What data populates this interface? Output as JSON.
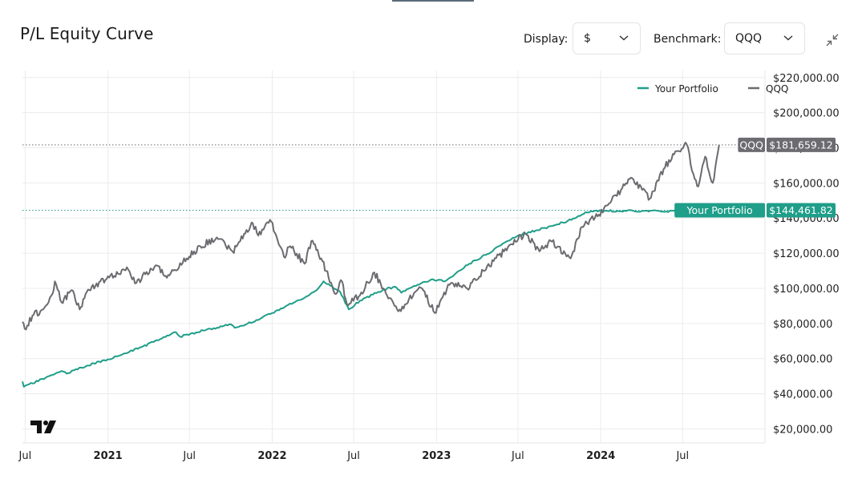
{
  "header": {
    "title": "P/L Equity Curve",
    "display_label": "Display:",
    "display_value": "$",
    "benchmark_label": "Benchmark:",
    "benchmark_value": "QQQ"
  },
  "colors": {
    "portfolio": "#1f9e89",
    "benchmark": "#6b6b70",
    "grid": "#ececec",
    "text": "#1f1f1f"
  },
  "icons": [
    "chevron-down-icon",
    "collapse-icon",
    "tradingview-logo"
  ],
  "chart_data": {
    "type": "line",
    "title": "P/L Equity Curve",
    "xlabel": "",
    "ylabel": "",
    "x_range": [
      "2020-06-25",
      "2024-12-31"
    ],
    "ylim": [
      12000,
      224000
    ],
    "y_ticks": [
      20000,
      40000,
      60000,
      80000,
      100000,
      120000,
      140000,
      160000,
      180000,
      200000,
      220000
    ],
    "y_tick_labels": [
      "$20,000.00",
      "$40,000.00",
      "$60,000.00",
      "$80,000.00",
      "$100,000.00",
      "$120,000.00",
      "$140,000.00",
      "$160,000.00",
      "$180,000.00",
      "$200,000.00",
      "$220,000.00"
    ],
    "x_ticks": [
      {
        "label": "Jul",
        "date": "2020-07-01",
        "major": false
      },
      {
        "label": "2021",
        "date": "2021-01-01",
        "major": true
      },
      {
        "label": "Jul",
        "date": "2021-07-01",
        "major": false
      },
      {
        "label": "2022",
        "date": "2022-01-01",
        "major": true
      },
      {
        "label": "Jul",
        "date": "2022-07-01",
        "major": false
      },
      {
        "label": "2023",
        "date": "2023-01-01",
        "major": true
      },
      {
        "label": "Jul",
        "date": "2023-07-01",
        "major": false
      },
      {
        "label": "2024",
        "date": "2024-01-01",
        "major": true
      },
      {
        "label": "Jul",
        "date": "2024-07-01",
        "major": false
      }
    ],
    "grid": true,
    "legend_position": "top-right",
    "series": [
      {
        "name": "Your Portfolio",
        "color": "#1f9e89",
        "last_value_label": "$144,461.82",
        "last_value": 144461.82,
        "points": [
          [
            "2020-06-25",
            47000
          ],
          [
            "2020-06-28",
            44000
          ],
          [
            "2020-08-15",
            49000
          ],
          [
            "2020-09-20",
            53000
          ],
          [
            "2020-10-01",
            51500
          ],
          [
            "2020-11-15",
            56000
          ],
          [
            "2020-12-31",
            59500
          ],
          [
            "2021-02-10",
            63000
          ],
          [
            "2021-03-20",
            67000
          ],
          [
            "2021-05-01",
            71500
          ],
          [
            "2021-06-01",
            75000
          ],
          [
            "2021-06-10",
            72500
          ],
          [
            "2021-08-01",
            76000
          ],
          [
            "2021-10-01",
            79500
          ],
          [
            "2021-10-10",
            77500
          ],
          [
            "2021-12-01",
            82000
          ],
          [
            "2022-01-01",
            86000
          ],
          [
            "2022-02-01",
            90000
          ],
          [
            "2022-03-10",
            94000
          ],
          [
            "2022-04-10",
            99000
          ],
          [
            "2022-04-25",
            104000
          ],
          [
            "2022-05-10",
            101500
          ],
          [
            "2022-06-01",
            98000
          ],
          [
            "2022-06-20",
            88000
          ],
          [
            "2022-07-15",
            93000
          ],
          [
            "2022-08-25",
            98000
          ],
          [
            "2022-09-30",
            101000
          ],
          [
            "2022-10-15",
            97500
          ],
          [
            "2022-11-20",
            102000
          ],
          [
            "2022-12-20",
            105000
          ],
          [
            "2023-01-20",
            104000
          ],
          [
            "2023-02-15",
            109000
          ],
          [
            "2023-03-15",
            114000
          ],
          [
            "2023-04-20",
            119000
          ],
          [
            "2023-06-01",
            126000
          ],
          [
            "2023-07-01",
            130000
          ],
          [
            "2023-08-10",
            133000
          ],
          [
            "2023-09-15",
            135500
          ],
          [
            "2023-10-20",
            138500
          ],
          [
            "2023-11-20",
            142000
          ],
          [
            "2023-12-10",
            144000
          ],
          [
            "2024-01-15",
            144100
          ],
          [
            "2024-04-01",
            144000
          ],
          [
            "2024-06-15",
            143900
          ],
          [
            "2024-08-15",
            143800
          ],
          [
            "2024-09-10",
            144000
          ],
          [
            "2024-09-20",
            144461.82
          ]
        ]
      },
      {
        "name": "QQQ",
        "color": "#6b6b70",
        "last_value_label": "$181,659.12",
        "last_value": 181659.12,
        "points": [
          [
            "2020-06-25",
            81000
          ],
          [
            "2020-06-30",
            77000
          ],
          [
            "2020-07-20",
            85000
          ],
          [
            "2020-08-10",
            88000
          ],
          [
            "2020-08-31",
            97000
          ],
          [
            "2020-09-05",
            104000
          ],
          [
            "2020-09-20",
            92000
          ],
          [
            "2020-10-12",
            99000
          ],
          [
            "2020-10-30",
            88000
          ],
          [
            "2020-11-15",
            98000
          ],
          [
            "2020-12-15",
            104000
          ],
          [
            "2021-01-15",
            107000
          ],
          [
            "2021-02-12",
            112000
          ],
          [
            "2021-03-05",
            103000
          ],
          [
            "2021-03-25",
            108000
          ],
          [
            "2021-04-20",
            113000
          ],
          [
            "2021-05-12",
            106000
          ],
          [
            "2021-06-25",
            117000
          ],
          [
            "2021-07-25",
            124000
          ],
          [
            "2021-08-31",
            129000
          ],
          [
            "2021-09-20",
            124000
          ],
          [
            "2021-10-05",
            121000
          ],
          [
            "2021-11-19",
            137000
          ],
          [
            "2021-12-01",
            130000
          ],
          [
            "2021-12-27",
            139000
          ],
          [
            "2022-01-10",
            130000
          ],
          [
            "2022-01-27",
            118000
          ],
          [
            "2022-02-10",
            124000
          ],
          [
            "2022-03-14",
            114000
          ],
          [
            "2022-03-29",
            127000
          ],
          [
            "2022-04-20",
            117000
          ],
          [
            "2022-05-20",
            97000
          ],
          [
            "2022-06-05",
            104000
          ],
          [
            "2022-06-16",
            91000
          ],
          [
            "2022-07-15",
            96000
          ],
          [
            "2022-08-16",
            109000
          ],
          [
            "2022-09-05",
            100000
          ],
          [
            "2022-09-30",
            90000
          ],
          [
            "2022-10-14",
            87000
          ],
          [
            "2022-11-01",
            94000
          ],
          [
            "2022-11-15",
            98000
          ],
          [
            "2022-11-30",
            100000
          ],
          [
            "2022-12-28",
            86000
          ],
          [
            "2023-01-15",
            95000
          ],
          [
            "2023-02-02",
            103000
          ],
          [
            "2023-03-10",
            100000
          ],
          [
            "2023-04-15",
            110000
          ],
          [
            "2023-05-31",
            121000
          ],
          [
            "2023-06-15",
            125000
          ],
          [
            "2023-07-18",
            131000
          ],
          [
            "2023-08-18",
            121000
          ],
          [
            "2023-09-12",
            127000
          ],
          [
            "2023-10-26",
            117000
          ],
          [
            "2023-11-20",
            135000
          ],
          [
            "2023-12-28",
            142000
          ],
          [
            "2024-01-25",
            150000
          ],
          [
            "2024-02-15",
            156000
          ],
          [
            "2024-03-08",
            163000
          ],
          [
            "2024-04-19",
            151000
          ],
          [
            "2024-05-20",
            168000
          ],
          [
            "2024-06-15",
            178000
          ],
          [
            "2024-07-10",
            182000
          ],
          [
            "2024-07-25",
            165000
          ],
          [
            "2024-08-05",
            158000
          ],
          [
            "2024-08-20",
            175000
          ],
          [
            "2024-09-06",
            160000
          ],
          [
            "2024-09-20",
            181659.12
          ]
        ]
      }
    ],
    "current_value_tags": [
      {
        "series": "QQQ",
        "label": "QQQ",
        "value_label": "$181,659.12"
      },
      {
        "series": "Your Portfolio",
        "label": "Your Portfolio",
        "value_label": "$144,461.82"
      }
    ]
  }
}
